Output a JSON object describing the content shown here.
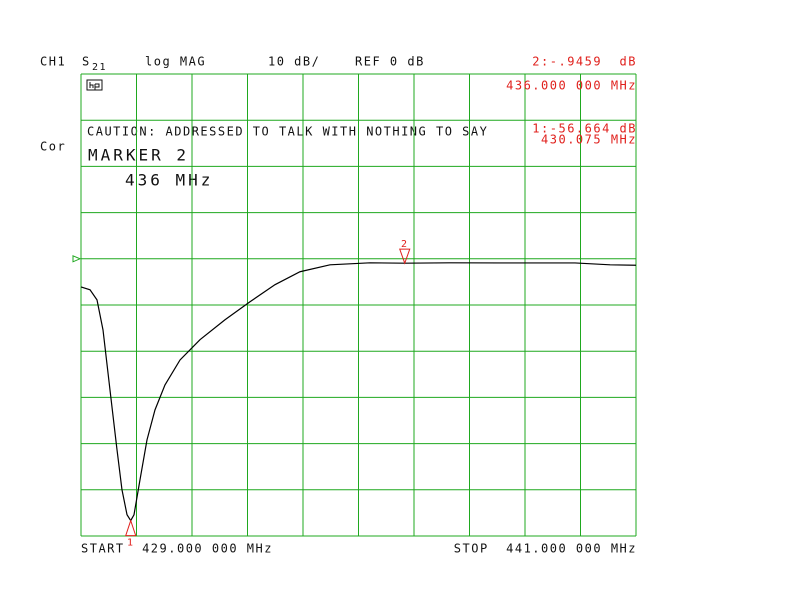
{
  "chart_data": {
    "type": "line",
    "channel": "CH1",
    "parameter": "S",
    "parameter_sub": "21",
    "format": "log MAG",
    "scale": "10 dB/",
    "reference": "REF 0 dB",
    "ref_level": 0,
    "correction": "Cor",
    "message": "CAUTION: ADDRESSED TO TALK WITH NOTHING TO SAY",
    "active_marker": "MARKER 2",
    "active_marker_freq": "436 MHz",
    "start": "START  429.000 000 MHz",
    "stop": "STOP  441.000 000 MHz",
    "xlim": [
      429,
      441
    ],
    "ylim": [
      -60,
      40
    ],
    "xticks": [
      429,
      430.2,
      431.4,
      432.6,
      433.8,
      435,
      436.2,
      437.4,
      438.6,
      439.8,
      441
    ],
    "yticks": [
      -60,
      -50,
      -40,
      -30,
      -20,
      -10,
      0,
      10,
      20,
      30,
      40
    ],
    "grid": true,
    "grid_color": "#1fa81f",
    "x": [
      429,
      429.195,
      429.346,
      429.476,
      429.627,
      429.778,
      429.886,
      429.995,
      430.075,
      430.146,
      430.276,
      430.427,
      430.6,
      430.816,
      431.141,
      431.573,
      432.114,
      432.654,
      433.195,
      433.735,
      434.384,
      435.25,
      436,
      436.978,
      438.059,
      439.68,
      440.44,
      441
    ],
    "series": [
      {
        "color": "#000000",
        "values": [
          -6.1,
          -6.7,
          -8.9,
          -15.4,
          -28.4,
          -41.3,
          -50,
          -55.4,
          -56.664,
          -55.4,
          -47.8,
          -39.2,
          -32.7,
          -27.3,
          -21.9,
          -17.5,
          -13.2,
          -9.3,
          -5.6,
          -2.8,
          -1.3,
          -0.87,
          -0.9459,
          -0.87,
          -0.9,
          -0.9,
          -1.3,
          -1.4
        ]
      }
    ],
    "markers": [
      {
        "label": "1",
        "x": 430.075,
        "value": -56.664,
        "value_label": "1:-56.664 dB",
        "x_label": "430.075 MHz"
      },
      {
        "label": "2",
        "x": 436,
        "value": -0.9459,
        "value_label": "2:-.9459  dB",
        "x_label": "436.000 000 MHz"
      }
    ],
    "marker_color": "#e0201c"
  }
}
